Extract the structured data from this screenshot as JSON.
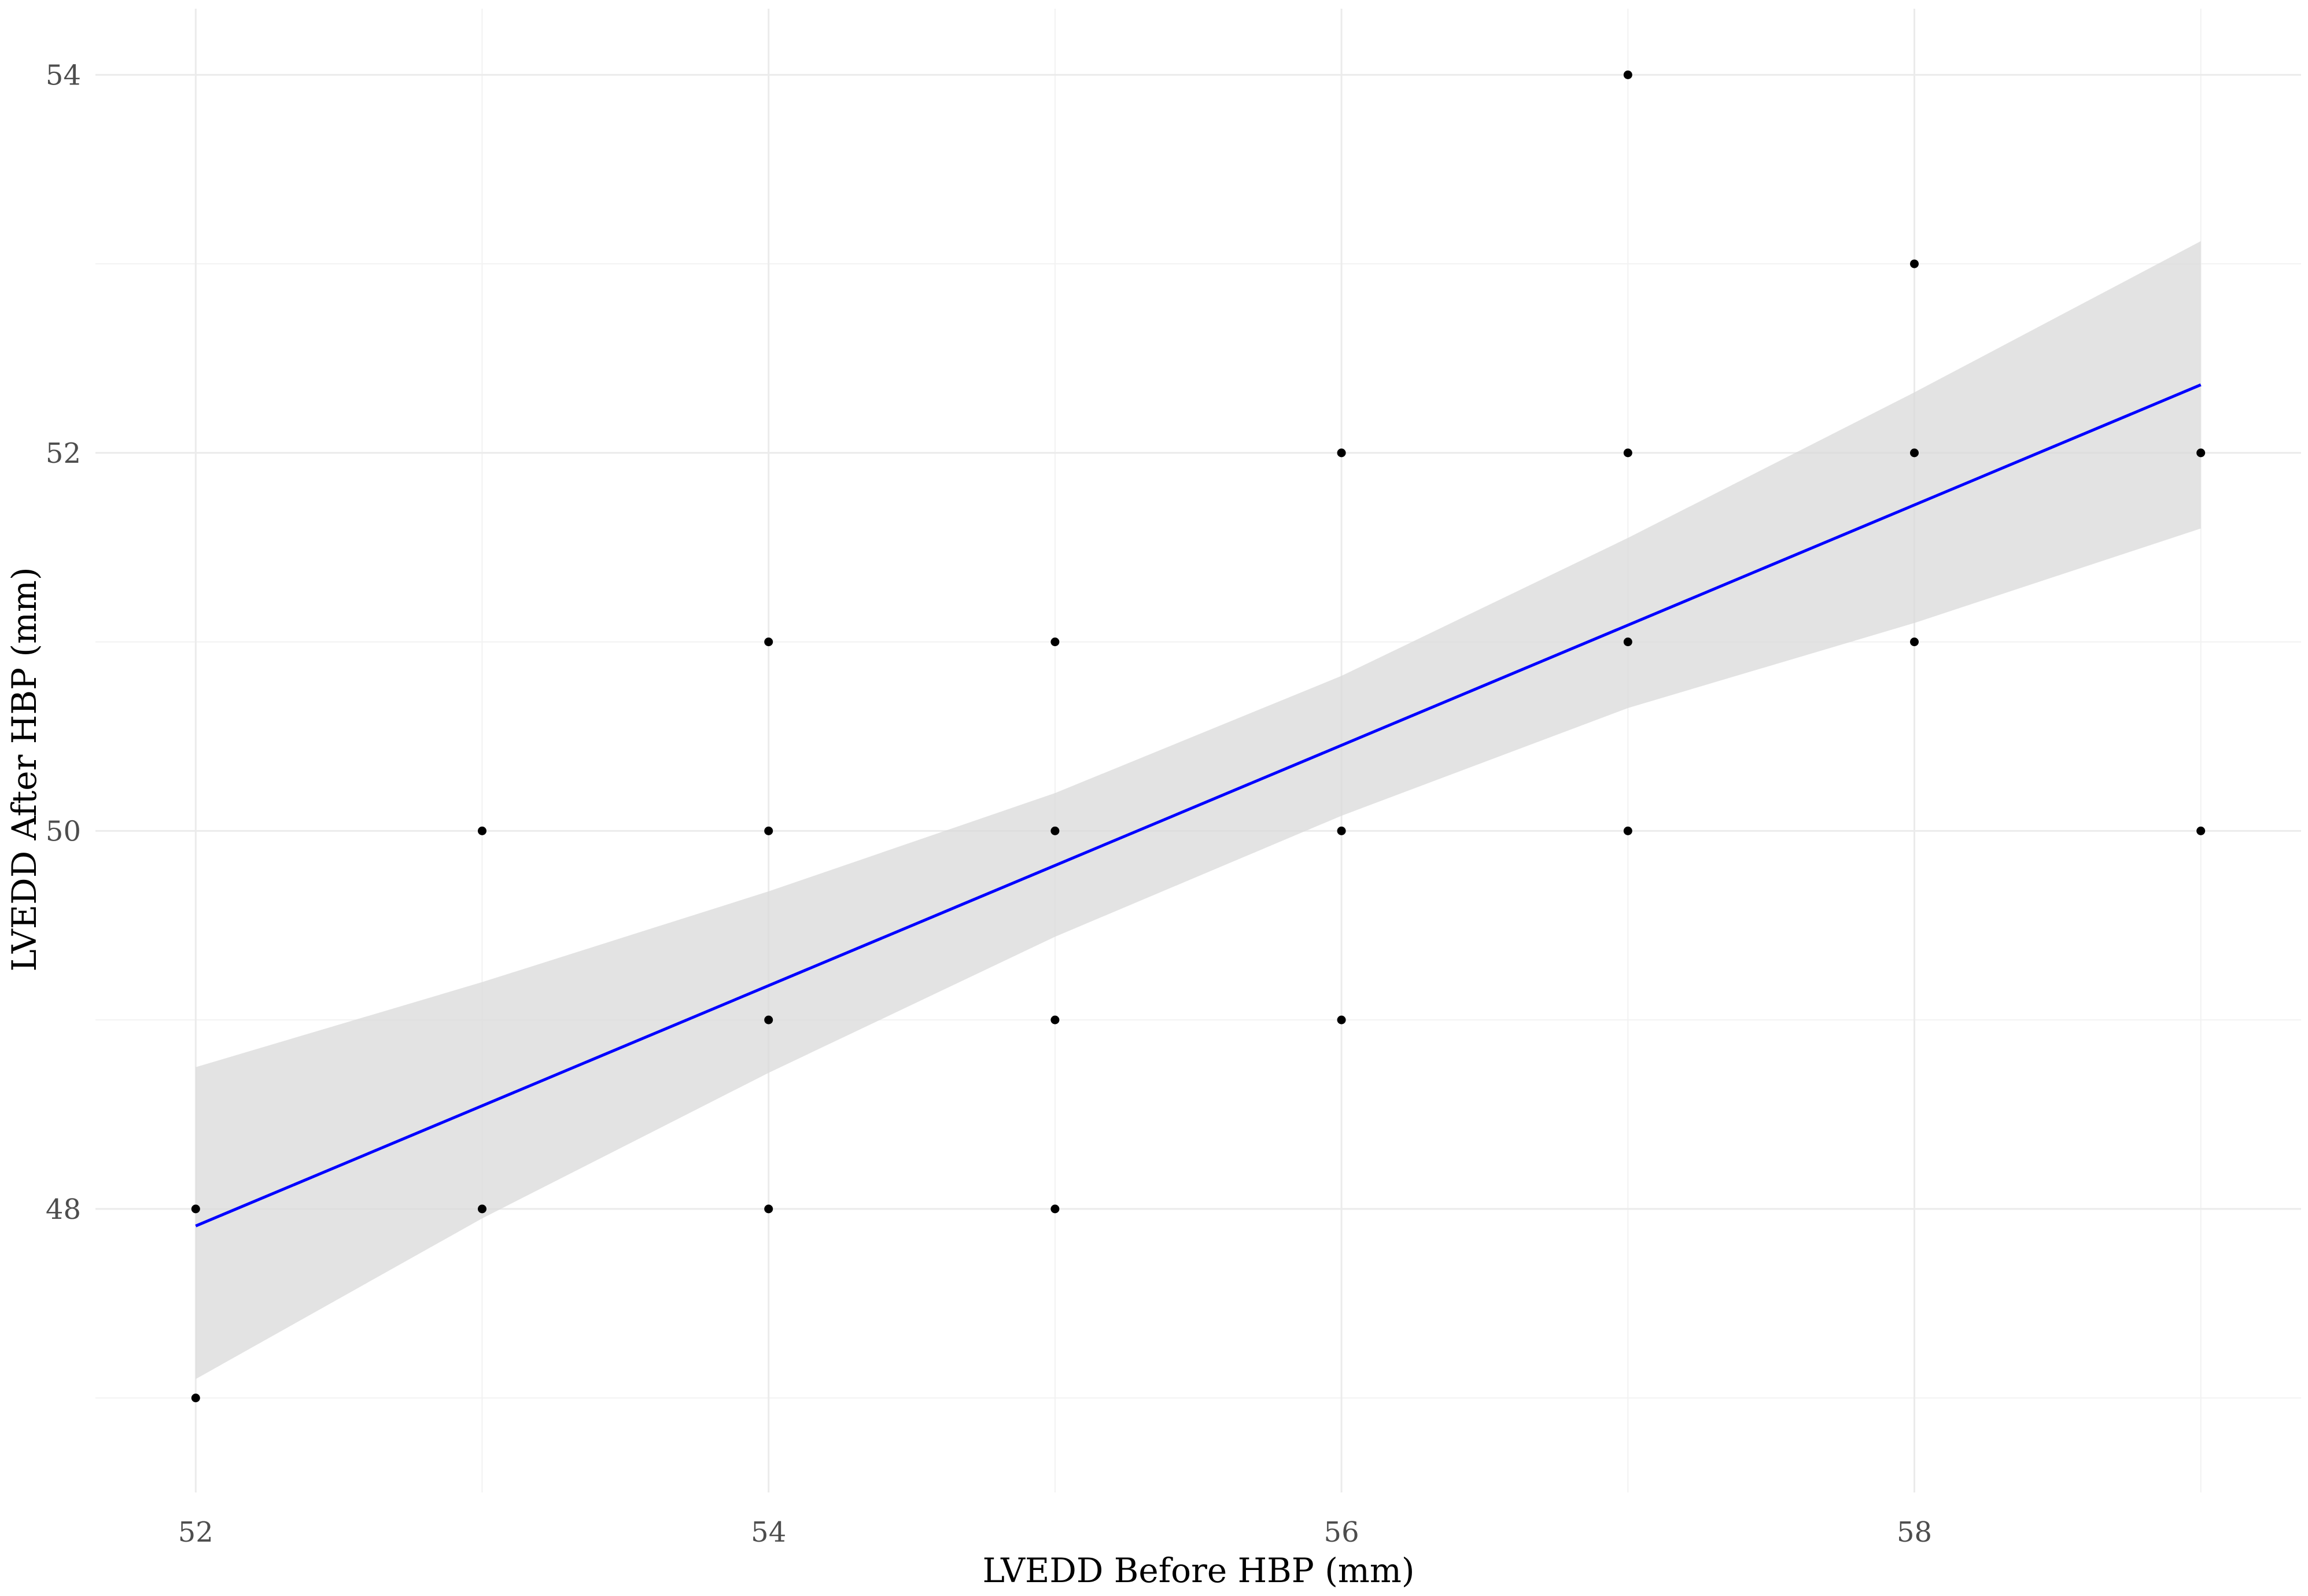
{
  "chart_data": {
    "type": "scatter",
    "xlabel": "LVEDD Before HBP (mm)",
    "ylabel": "LVEDD After HBP (mm)",
    "xlim": [
      51.65,
      59.35
    ],
    "ylim": [
      46.5,
      54.35
    ],
    "x_ticks": [
      52,
      54,
      56,
      58
    ],
    "y_ticks": [
      48,
      50,
      52,
      54
    ],
    "x_ticks_minor": [
      53,
      55,
      57,
      59
    ],
    "y_ticks_minor": [
      47,
      49,
      51,
      53
    ],
    "grid": true,
    "points": [
      {
        "x": 52,
        "y": 48
      },
      {
        "x": 52,
        "y": 47
      },
      {
        "x": 53,
        "y": 50
      },
      {
        "x": 53,
        "y": 48
      },
      {
        "x": 54,
        "y": 51
      },
      {
        "x": 54,
        "y": 50
      },
      {
        "x": 54,
        "y": 49
      },
      {
        "x": 54,
        "y": 48
      },
      {
        "x": 55,
        "y": 51
      },
      {
        "x": 55,
        "y": 50
      },
      {
        "x": 55,
        "y": 49
      },
      {
        "x": 55,
        "y": 48
      },
      {
        "x": 56,
        "y": 52
      },
      {
        "x": 56,
        "y": 50
      },
      {
        "x": 56,
        "y": 49
      },
      {
        "x": 57,
        "y": 54
      },
      {
        "x": 57,
        "y": 52
      },
      {
        "x": 57,
        "y": 51
      },
      {
        "x": 57,
        "y": 50
      },
      {
        "x": 58,
        "y": 53
      },
      {
        "x": 58,
        "y": 52
      },
      {
        "x": 58,
        "y": 51
      },
      {
        "x": 59,
        "y": 52
      },
      {
        "x": 59,
        "y": 50
      }
    ],
    "fit_line": {
      "x": [
        52,
        59
      ],
      "y": [
        47.91,
        52.36
      ],
      "color": "#0000ff"
    },
    "confidence_band": {
      "color": "#d9d9d9",
      "x": [
        52,
        53,
        54,
        55,
        56,
        57,
        58,
        59
      ],
      "upper": [
        48.75,
        49.2,
        49.68,
        50.2,
        50.82,
        51.55,
        52.32,
        53.12
      ],
      "lower": [
        47.1,
        47.95,
        48.72,
        49.44,
        50.08,
        50.65,
        51.1,
        51.6
      ]
    }
  }
}
